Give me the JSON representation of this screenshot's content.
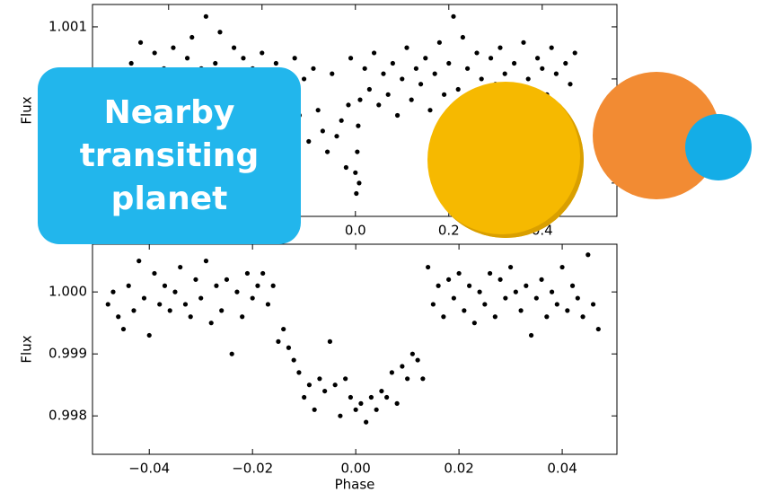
{
  "chart_data": [
    {
      "type": "scatter",
      "annotation": "Nearby transiting planet",
      "ylabel": "Flux",
      "color": "#000000",
      "xlim": [
        -0.563,
        0.56
      ],
      "ylim": [
        0.99736,
        1.00143
      ],
      "xticks": [
        {
          "value": -0.4,
          "label": "−0.4"
        },
        {
          "value": -0.2,
          "label": "−0.2"
        },
        {
          "value": 0.0,
          "label": "0.0"
        },
        0.2,
        0.4
      ],
      "yticks": [
        {
          "value": 0.998,
          "label": "0.998"
        },
        0.999,
        {
          "value": 1.0,
          "label": "1.000"
        },
        1.001
      ],
      "x": [
        -0.48,
        -0.47,
        -0.46,
        -0.45,
        -0.44,
        -0.43,
        -0.42,
        -0.41,
        -0.4,
        -0.39,
        -0.38,
        -0.37,
        -0.36,
        -0.35,
        -0.34,
        -0.33,
        -0.32,
        -0.31,
        -0.3,
        -0.29,
        -0.28,
        -0.27,
        -0.26,
        -0.25,
        -0.24,
        -0.23,
        -0.22,
        -0.21,
        -0.2,
        -0.19,
        -0.18,
        -0.17,
        -0.16,
        -0.15,
        -0.14,
        -0.13,
        -0.12,
        -0.11,
        -0.1,
        -0.09,
        -0.08,
        -0.07,
        -0.06,
        -0.05,
        -0.04,
        -0.03,
        -0.02,
        -0.015,
        -0.01,
        0.0,
        0.002,
        0.004,
        0.006,
        0.008,
        0.01,
        0.02,
        0.03,
        0.04,
        0.05,
        0.06,
        0.07,
        0.08,
        0.09,
        0.1,
        0.11,
        0.12,
        0.13,
        0.14,
        0.15,
        0.16,
        0.17,
        0.18,
        0.19,
        0.2,
        0.21,
        0.22,
        0.23,
        0.24,
        0.25,
        0.26,
        0.27,
        0.28,
        0.29,
        0.3,
        0.31,
        0.32,
        0.33,
        0.34,
        0.35,
        0.36,
        0.37,
        0.38,
        0.39,
        0.4,
        0.41,
        0.42,
        0.43,
        0.44,
        0.45,
        0.46,
        0.47
      ],
      "values": [
        1.0003,
        0.9996,
        1.0007,
        1.0001,
        0.9994,
        1.0005,
        0.9999,
        1.0002,
        0.9992,
        1.0006,
        1.0,
        0.9997,
        1.0004,
        1.0008,
        0.9995,
        1.0002,
        1.0012,
        0.9998,
        1.0003,
        1.0009,
        0.9996,
        1.0001,
        1.0006,
        0.9993,
        1.0004,
        0.9999,
        1.0002,
        0.9995,
        1.0005,
        1.0,
        0.9997,
        1.0003,
        0.9991,
        1.0001,
        0.9996,
        1.0004,
        0.9993,
        1.0,
        0.9988,
        1.0002,
        0.9994,
        0.999,
        0.9986,
        1.0001,
        0.9989,
        0.9992,
        0.9983,
        0.9995,
        1.0004,
        0.9982,
        0.9978,
        0.9986,
        0.9991,
        0.998,
        0.9996,
        1.0002,
        0.9998,
        1.0005,
        0.9995,
        1.0001,
        0.9997,
        1.0003,
        0.9993,
        1.0,
        1.0006,
        0.9996,
        1.0002,
        0.9999,
        1.0004,
        0.9994,
        1.0001,
        1.0007,
        0.9997,
        1.0003,
        1.0012,
        0.9998,
        1.0008,
        1.0002,
        0.9995,
        1.0005,
        1.0,
        0.9996,
        1.0004,
        0.9999,
        1.0006,
        1.0001,
        0.9994,
        1.0003,
        0.9998,
        1.0007,
        1.0,
        0.9995,
        1.0004,
        1.0002,
        0.9997,
        1.0006,
        1.0001,
        0.9993,
        1.0003,
        0.9999,
        1.0005
      ]
    },
    {
      "type": "scatter",
      "xlabel": "Phase",
      "ylabel": "Flux",
      "color": "#000000",
      "xlim": [
        -0.051,
        0.0506
      ],
      "ylim": [
        0.99738,
        1.00077
      ],
      "xticks": [
        {
          "value": -0.04,
          "label": "−0.04"
        },
        {
          "value": -0.02,
          "label": "−0.02"
        },
        {
          "value": 0.0,
          "label": "0.00"
        },
        0.02,
        0.04
      ],
      "yticks": [
        {
          "value": 0.998,
          "label": "0.998"
        },
        0.999,
        {
          "value": 1.0,
          "label": "1.000"
        }
      ],
      "x": [
        -0.048,
        -0.047,
        -0.046,
        -0.045,
        -0.044,
        -0.043,
        -0.042,
        -0.041,
        -0.04,
        -0.039,
        -0.038,
        -0.037,
        -0.036,
        -0.035,
        -0.034,
        -0.033,
        -0.032,
        -0.031,
        -0.03,
        -0.029,
        -0.028,
        -0.027,
        -0.026,
        -0.025,
        -0.024,
        -0.023,
        -0.022,
        -0.021,
        -0.02,
        -0.019,
        -0.018,
        -0.017,
        -0.016,
        -0.015,
        -0.014,
        -0.013,
        -0.012,
        -0.011,
        -0.01,
        -0.009,
        -0.008,
        -0.007,
        -0.006,
        -0.005,
        -0.004,
        -0.003,
        -0.002,
        -0.001,
        0.0,
        0.001,
        0.002,
        0.003,
        0.004,
        0.005,
        0.006,
        0.007,
        0.008,
        0.009,
        0.01,
        0.011,
        0.012,
        0.013,
        0.014,
        0.015,
        0.016,
        0.017,
        0.018,
        0.019,
        0.02,
        0.021,
        0.022,
        0.023,
        0.024,
        0.025,
        0.026,
        0.027,
        0.028,
        0.029,
        0.03,
        0.031,
        0.032,
        0.033,
        0.034,
        0.035,
        0.036,
        0.037,
        0.038,
        0.039,
        0.04,
        0.041,
        0.042,
        0.043,
        0.044,
        0.045,
        0.046,
        0.047
      ],
      "values": [
        0.9998,
        1.0,
        0.9996,
        0.9994,
        1.0001,
        0.9997,
        1.0005,
        0.9999,
        0.9993,
        1.0003,
        0.9998,
        1.0001,
        0.9997,
        1.0,
        1.0004,
        0.9998,
        0.9996,
        1.0002,
        0.9999,
        1.0005,
        0.9995,
        1.0001,
        0.9997,
        1.0002,
        0.999,
        1.0,
        0.9996,
        1.0003,
        0.9999,
        1.0001,
        1.0003,
        0.9998,
        1.0001,
        0.9992,
        0.9994,
        0.9991,
        0.9989,
        0.9987,
        0.9983,
        0.9985,
        0.9981,
        0.9986,
        0.9984,
        0.9992,
        0.9985,
        0.998,
        0.9986,
        0.9983,
        0.9981,
        0.9982,
        0.9979,
        0.9983,
        0.9981,
        0.9984,
        0.9983,
        0.9987,
        0.9982,
        0.9988,
        0.9986,
        0.999,
        0.9989,
        0.9986,
        1.0004,
        0.9998,
        1.0001,
        0.9996,
        1.0002,
        0.9999,
        1.0003,
        0.9997,
        1.0001,
        0.9995,
        1.0,
        0.9998,
        1.0003,
        0.9996,
        1.0002,
        0.9999,
        1.0004,
        1.0,
        0.9997,
        1.0001,
        0.9993,
        0.9999,
        1.0002,
        0.9996,
        1.0,
        0.9998,
        1.0004,
        0.9997,
        1.0001,
        0.9999,
        0.9996,
        1.0006,
        0.9998,
        0.9994
      ]
    }
  ]
}
